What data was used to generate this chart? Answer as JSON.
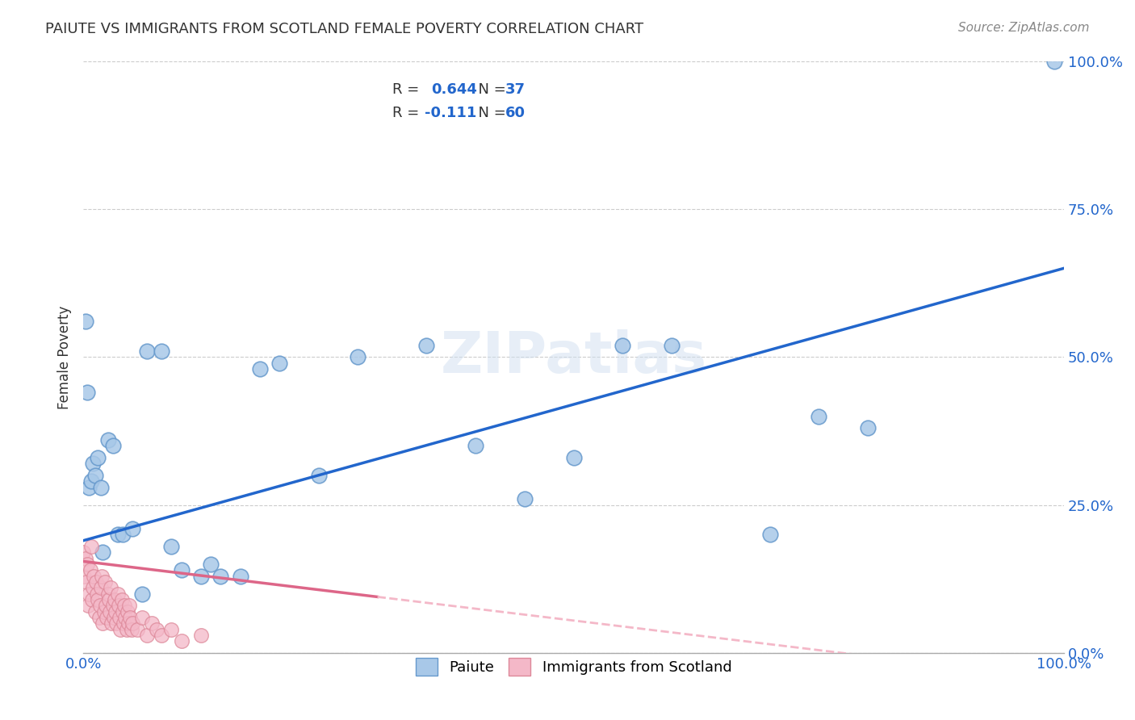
{
  "title": "PAIUTE VS IMMIGRANTS FROM SCOTLAND FEMALE POVERTY CORRELATION CHART",
  "source": "Source: ZipAtlas.com",
  "xlabel": "",
  "ylabel": "Female Poverty",
  "xlim": [
    0.0,
    1.0
  ],
  "ylim": [
    0.0,
    1.0
  ],
  "xtick_labels": [
    "0.0%",
    "100.0%"
  ],
  "ytick_labels": [
    "0.0%",
    "25.0%",
    "50.0%",
    "75.0%",
    "100.0%"
  ],
  "ytick_positions": [
    0.0,
    0.25,
    0.5,
    0.75,
    1.0
  ],
  "grid_color": "#cccccc",
  "background_color": "#ffffff",
  "paiute_color": "#a8c8e8",
  "paiute_edge_color": "#6699cc",
  "scotland_color": "#f4b8c8",
  "scotland_edge_color": "#dd8899",
  "paiute_R": 0.644,
  "paiute_N": 37,
  "scotland_R": -0.111,
  "scotland_N": 60,
  "legend_label1": "Paiute",
  "legend_label2": "Immigrants from Scotland",
  "watermark": "ZIPatlas",
  "paiute_x": [
    0.002,
    0.004,
    0.006,
    0.008,
    0.01,
    0.012,
    0.015,
    0.018,
    0.02,
    0.025,
    0.03,
    0.035,
    0.04,
    0.05,
    0.06,
    0.065,
    0.08,
    0.09,
    0.1,
    0.12,
    0.13,
    0.14,
    0.16,
    0.18,
    0.2,
    0.24,
    0.28,
    0.35,
    0.4,
    0.45,
    0.5,
    0.55,
    0.6,
    0.7,
    0.75,
    0.8,
    0.99
  ],
  "paiute_y": [
    0.56,
    0.44,
    0.28,
    0.29,
    0.32,
    0.3,
    0.33,
    0.28,
    0.17,
    0.36,
    0.35,
    0.2,
    0.2,
    0.21,
    0.1,
    0.51,
    0.51,
    0.18,
    0.14,
    0.13,
    0.15,
    0.13,
    0.13,
    0.48,
    0.49,
    0.3,
    0.5,
    0.52,
    0.35,
    0.26,
    0.33,
    0.52,
    0.52,
    0.2,
    0.4,
    0.38,
    1.0
  ],
  "scotland_x": [
    0.0,
    0.001,
    0.002,
    0.003,
    0.004,
    0.005,
    0.006,
    0.007,
    0.008,
    0.009,
    0.01,
    0.011,
    0.012,
    0.013,
    0.014,
    0.015,
    0.016,
    0.017,
    0.018,
    0.019,
    0.02,
    0.021,
    0.022,
    0.023,
    0.024,
    0.025,
    0.026,
    0.027,
    0.028,
    0.029,
    0.03,
    0.031,
    0.032,
    0.033,
    0.034,
    0.035,
    0.036,
    0.037,
    0.038,
    0.039,
    0.04,
    0.041,
    0.042,
    0.043,
    0.044,
    0.045,
    0.046,
    0.047,
    0.048,
    0.049,
    0.05,
    0.055,
    0.06,
    0.065,
    0.07,
    0.075,
    0.08,
    0.09,
    0.1,
    0.12
  ],
  "scotland_y": [
    0.17,
    0.13,
    0.16,
    0.12,
    0.15,
    0.08,
    0.1,
    0.14,
    0.18,
    0.09,
    0.11,
    0.13,
    0.07,
    0.12,
    0.1,
    0.09,
    0.06,
    0.08,
    0.11,
    0.13,
    0.05,
    0.07,
    0.12,
    0.08,
    0.06,
    0.1,
    0.09,
    0.07,
    0.11,
    0.05,
    0.08,
    0.06,
    0.09,
    0.07,
    0.05,
    0.1,
    0.08,
    0.06,
    0.04,
    0.09,
    0.07,
    0.05,
    0.08,
    0.06,
    0.04,
    0.07,
    0.05,
    0.08,
    0.06,
    0.04,
    0.05,
    0.04,
    0.06,
    0.03,
    0.05,
    0.04,
    0.03,
    0.04,
    0.02,
    0.03
  ]
}
